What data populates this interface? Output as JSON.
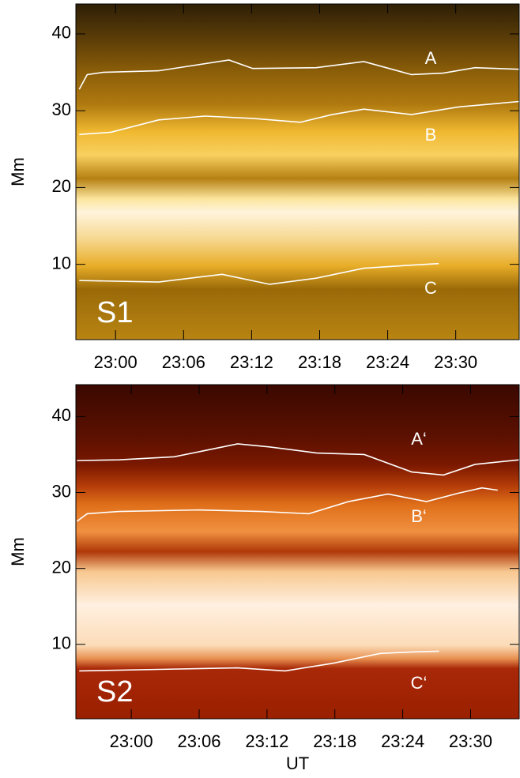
{
  "chart_data": [
    {
      "type": "line",
      "label": "S1",
      "y_label": "Mm",
      "xlim": [
        1376.5,
        1415.6
      ],
      "ylim": [
        0.2,
        43.9
      ],
      "xticks": [
        {
          "value": 1380,
          "label": "23:00"
        },
        {
          "value": 1386,
          "label": "23:06"
        },
        {
          "value": 1392,
          "label": "23:12"
        },
        {
          "value": 1398,
          "label": "23:18"
        },
        {
          "value": 1404,
          "label": "23:24"
        },
        {
          "value": 1410,
          "label": "23:30"
        }
      ],
      "yticks": [
        10,
        20,
        30,
        40
      ],
      "series": [
        {
          "name": "A",
          "color": "#ffffff",
          "x": [
            1376.8,
            1377.5,
            1378.9,
            1383.8,
            1390.0,
            1392.1,
            1397.7,
            1401.9,
            1406.1,
            1408.9,
            1411.7,
            1415.6
          ],
          "values": [
            32.8,
            34.7,
            35.0,
            35.2,
            36.6,
            35.5,
            35.6,
            36.4,
            34.7,
            34.9,
            35.6,
            35.4
          ]
        },
        {
          "name": "B",
          "color": "#ffffff",
          "x": [
            1376.8,
            1379.6,
            1383.8,
            1387.9,
            1392.1,
            1396.3,
            1399.1,
            1401.9,
            1406.1,
            1410.3,
            1415.6
          ],
          "values": [
            26.9,
            27.2,
            28.8,
            29.3,
            29.0,
            28.5,
            29.5,
            30.2,
            29.5,
            30.5,
            31.2
          ]
        },
        {
          "name": "C",
          "color": "#ffffff",
          "x": [
            1376.8,
            1383.8,
            1389.4,
            1393.6,
            1397.7,
            1401.9,
            1406.1,
            1408.5
          ],
          "values": [
            7.9,
            7.7,
            8.7,
            7.4,
            8.2,
            9.5,
            9.9,
            10.1
          ]
        }
      ]
    },
    {
      "type": "line",
      "label": "S2",
      "y_label": "Mm",
      "x_label": "UT",
      "xlim": [
        1375.1,
        1414.3
      ],
      "ylim": [
        0.2,
        44.2
      ],
      "xticks": [
        {
          "value": 1380,
          "label": "23:00"
        },
        {
          "value": 1386,
          "label": "23:06"
        },
        {
          "value": 1392,
          "label": "23:12"
        },
        {
          "value": 1398,
          "label": "23:18"
        },
        {
          "value": 1404,
          "label": "23:24"
        },
        {
          "value": 1410,
          "label": "23:30"
        }
      ],
      "yticks": [
        10,
        20,
        30,
        40
      ],
      "series": [
        {
          "name": "A‘",
          "color": "#ffffff",
          "x": [
            1375.2,
            1378.9,
            1383.8,
            1389.4,
            1392.2,
            1396.4,
            1400.6,
            1404.8,
            1407.6,
            1410.4,
            1414.3
          ],
          "values": [
            34.2,
            34.3,
            34.7,
            36.4,
            36.0,
            35.2,
            35.0,
            32.7,
            32.3,
            33.7,
            34.3
          ]
        },
        {
          "name": "B‘",
          "color": "#ffffff",
          "x": [
            1375.2,
            1376.1,
            1378.9,
            1385.9,
            1391.5,
            1395.7,
            1399.2,
            1402.7,
            1406.1,
            1408.9,
            1411.0,
            1412.4
          ],
          "values": [
            26.2,
            27.2,
            27.5,
            27.7,
            27.5,
            27.2,
            28.8,
            29.8,
            28.8,
            29.9,
            30.6,
            30.3
          ]
        },
        {
          "name": "C‘",
          "color": "#ffffff",
          "x": [
            1375.4,
            1382.4,
            1389.4,
            1393.6,
            1397.8,
            1402.0,
            1404.8,
            1407.2
          ],
          "values": [
            6.5,
            6.7,
            6.9,
            6.5,
            7.5,
            8.8,
            9.0,
            9.1
          ]
        }
      ]
    }
  ]
}
